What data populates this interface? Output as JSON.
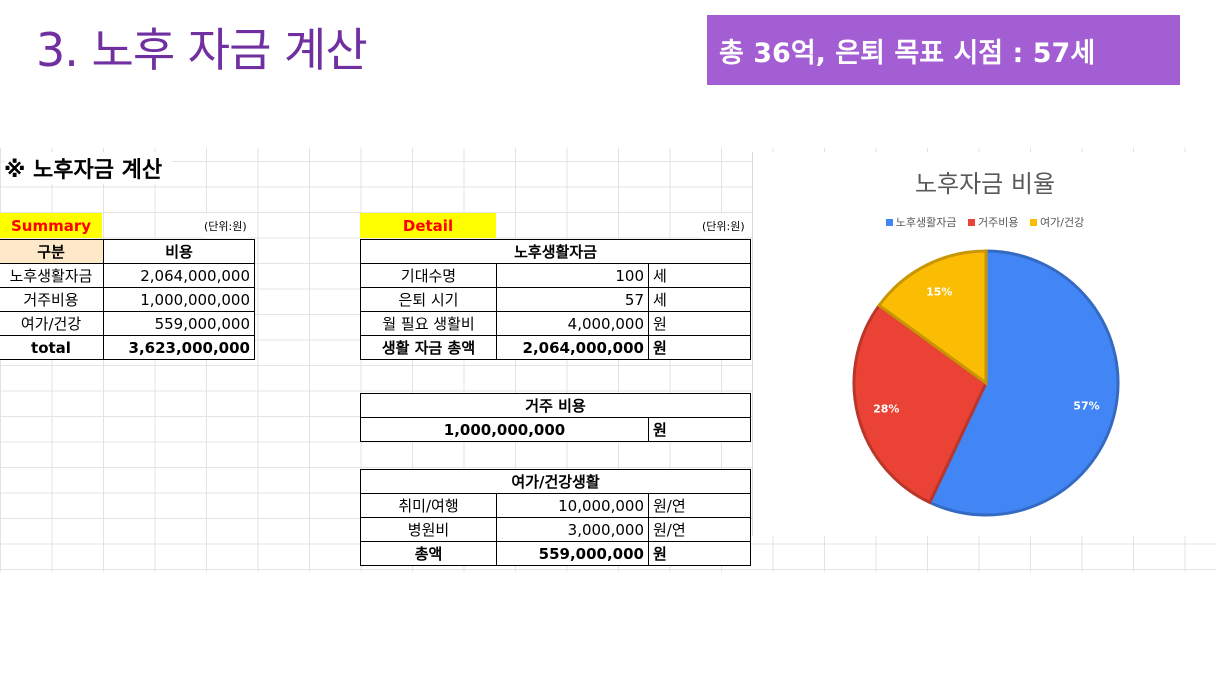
{
  "slide": {
    "title": "3. 노후 자금 계산",
    "badge": "총 36억, 은퇴 목표 시점  : 57세"
  },
  "sheet": {
    "heading": "※ 노후자금 계산",
    "summary": {
      "label": "Summary",
      "unit": "(단위:원)",
      "headers": [
        "구분",
        "비용"
      ],
      "rows": [
        {
          "name": "노후생활자금",
          "value": "2,064,000,000"
        },
        {
          "name": "거주비용",
          "value": "1,000,000,000"
        },
        {
          "name": "여가/건강",
          "value": "559,000,000"
        },
        {
          "name": "total",
          "value": "3,623,000,000"
        }
      ]
    },
    "detail": {
      "label": "Detail",
      "unit": "(단위:원)",
      "living": {
        "title": "노후생활자금",
        "rows": [
          {
            "name": "기대수명",
            "value": "100",
            "unit": "세"
          },
          {
            "name": "은퇴 시기",
            "value": "57",
            "unit": "세"
          },
          {
            "name": "월 필요 생활비",
            "value": "4,000,000",
            "unit": "원"
          },
          {
            "name": "생활 자금 총액",
            "value": "2,064,000,000",
            "unit": "원"
          }
        ]
      },
      "housing": {
        "title": "거주 비용",
        "value": "1,000,000,000",
        "unit": "원"
      },
      "leisure": {
        "title": "여가/건강생활",
        "rows": [
          {
            "name": "취미/여행",
            "value": "10,000,000",
            "unit": "원/연"
          },
          {
            "name": "병원비",
            "value": "3,000,000",
            "unit": "원/연"
          },
          {
            "name": "총액",
            "value": "559,000,000",
            "unit": "원"
          }
        ]
      }
    }
  },
  "chart_data": {
    "type": "pie",
    "title": "노후자금 비율",
    "legend_position": "top",
    "categories": [
      "노후생활자금",
      "거주비용",
      "여가/건강"
    ],
    "values": [
      57,
      28,
      15
    ],
    "labels": [
      "57%",
      "28%",
      "15%"
    ],
    "colors": [
      "#4285f4",
      "#ea4335",
      "#fbbc04"
    ]
  }
}
